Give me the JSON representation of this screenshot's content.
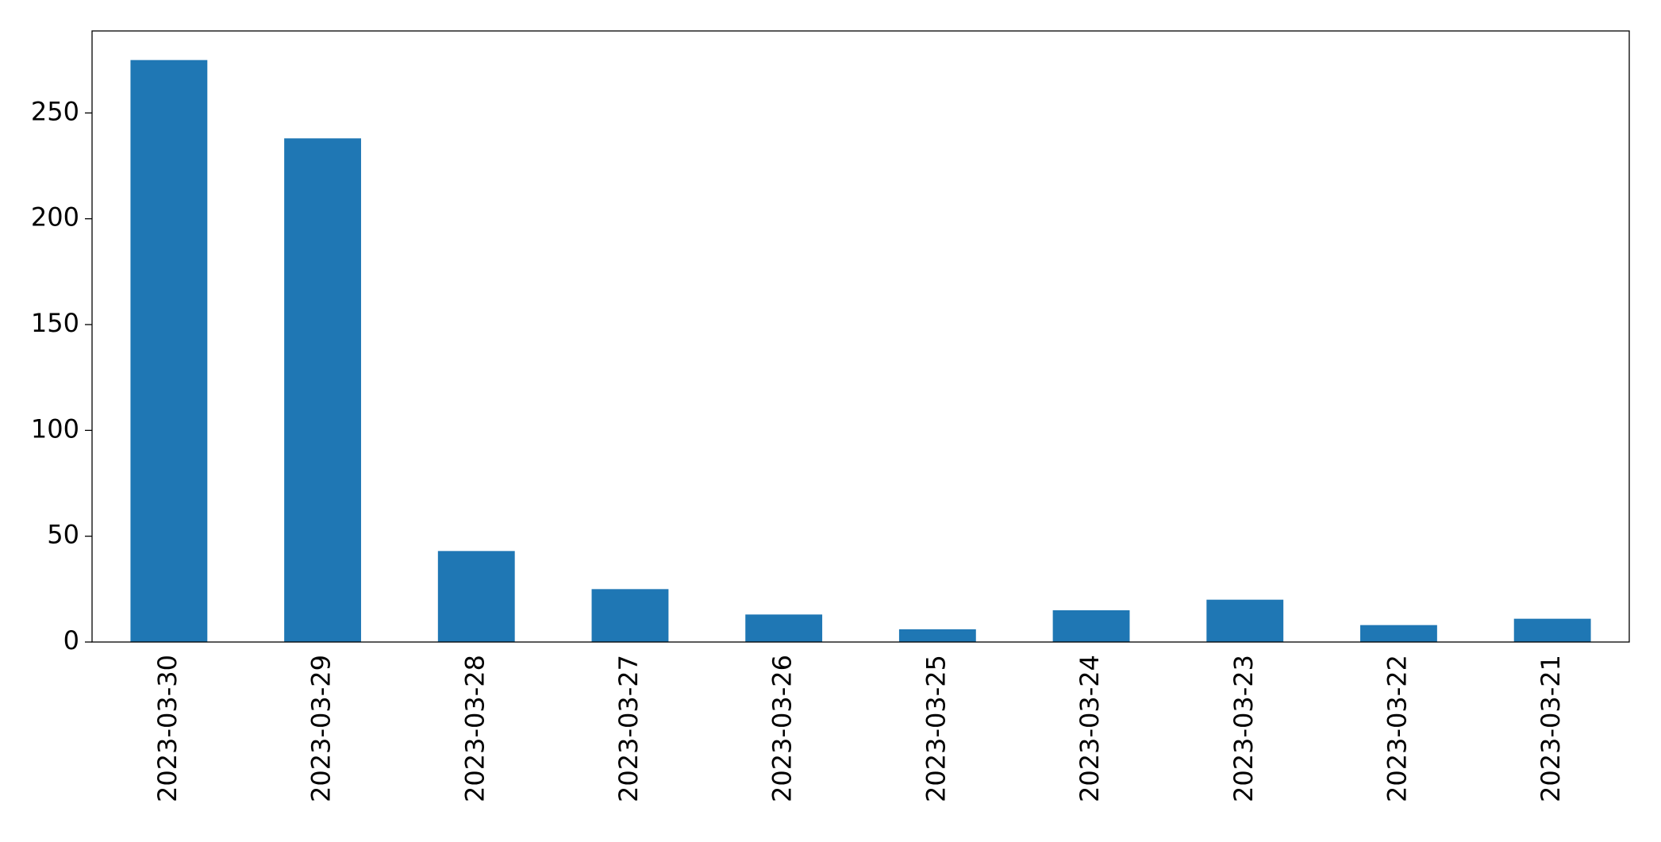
{
  "chart_data": {
    "type": "bar",
    "categories": [
      "2023-03-30",
      "2023-03-29",
      "2023-03-28",
      "2023-03-27",
      "2023-03-26",
      "2023-03-25",
      "2023-03-24",
      "2023-03-23",
      "2023-03-22",
      "2023-03-21"
    ],
    "values": [
      275,
      238,
      43,
      25,
      13,
      6,
      15,
      20,
      8,
      11
    ],
    "color": "#1f77b4",
    "ylim": [
      0,
      288.75
    ],
    "yticks": [
      0,
      50,
      100,
      150,
      200,
      250
    ],
    "grid": false
  }
}
